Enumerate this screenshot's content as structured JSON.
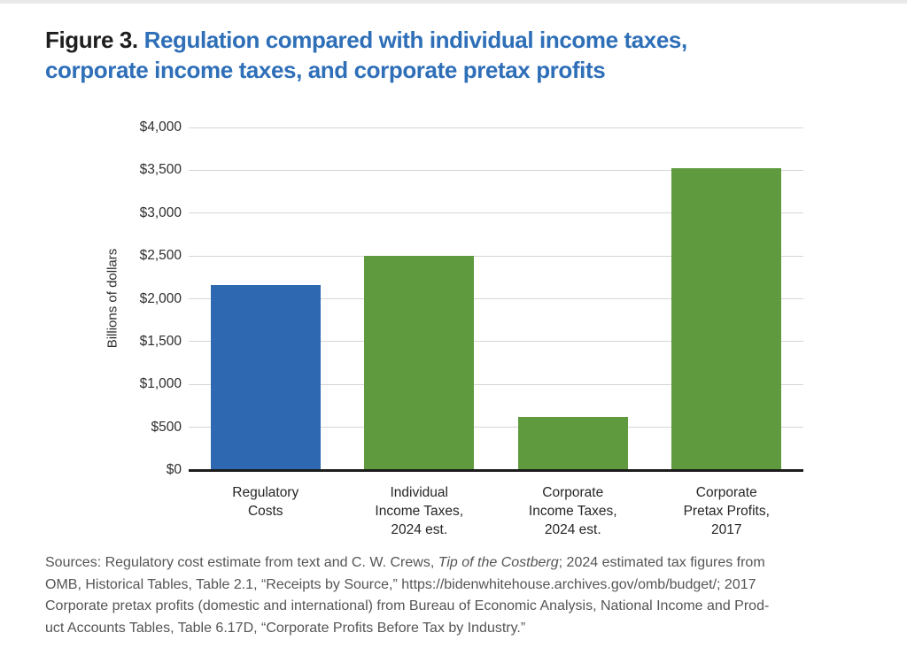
{
  "header": {
    "figure_label": "Figure 3.",
    "title_line1": "Regulation compared with individual income taxes,",
    "title_line2": "corporate income taxes, and corporate pretax profits",
    "title_color": "#2e6fb8"
  },
  "chart_data": {
    "type": "bar",
    "title": "",
    "xlabel": "",
    "ylabel": "Billions of dollars",
    "ylim": [
      0,
      4000
    ],
    "ytick_interval": 500,
    "ytick_labels": [
      "$0",
      "$500",
      "$1,000",
      "$1,500",
      "$2,000",
      "$2,500",
      "$3,000",
      "$3,500",
      "$4,000"
    ],
    "grid": true,
    "legend": "none",
    "categories": [
      "Regulatory Costs",
      "Individual Income Taxes, 2024 est.",
      "Corporate Income Taxes, 2024 est.",
      "Corporate Pretax Profits, 2017"
    ],
    "category_label_lines": [
      [
        "Regulatory",
        "Costs"
      ],
      [
        "Individual",
        "Income Taxes,",
        "2024 est."
      ],
      [
        "Corporate",
        "Income Taxes,",
        "2024 est."
      ],
      [
        "Corporate",
        "Pretax Profits,",
        "2017"
      ]
    ],
    "values": [
      2160,
      2500,
      620,
      3520
    ],
    "bar_colors": [
      "#2d68b0",
      "#5f9a3f",
      "#5f9a3f",
      "#5f9a3f"
    ],
    "gridline_color": "#d6d6d6",
    "axis_color": "#1c1c1c"
  },
  "sources": {
    "lines": [
      [
        {
          "text": "Sources: Regulatory cost estimate from text and C. W. Crews, ",
          "italic": false
        },
        {
          "text": "Tip of the Costberg",
          "italic": true
        },
        {
          "text": "; 2024 estimated tax figures from",
          "italic": false
        }
      ],
      [
        {
          "text": "OMB, Historical Tables, Table 2.1, “Receipts by Source,” https://bidenwhitehouse.archives.gov/omb/budget/; 2017",
          "italic": false
        }
      ],
      [
        {
          "text": "Corporate pretax profits (domestic and international) from Bureau of Economic Analysis, National Income and Prod-",
          "italic": false
        }
      ],
      [
        {
          "text": "uct Accounts Tables, Table 6.17D, “Corporate Profits Before Tax by Industry.”",
          "italic": false
        }
      ]
    ]
  }
}
